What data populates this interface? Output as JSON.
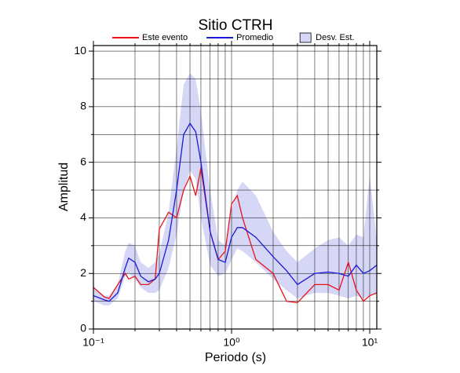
{
  "chart_data": {
    "type": "line",
    "title": "Sitio CTRH",
    "x_label": "Periodo (s)",
    "y_label": "Amplitud",
    "log_x": true,
    "grid": true,
    "xlim": [
      0.1,
      11.25
    ],
    "xticks": [
      {
        "value": 0.1,
        "label": "10⁻¹"
      },
      {
        "value": 1,
        "label": "10⁰"
      },
      {
        "value": 10,
        "label": "10¹"
      }
    ],
    "xminorticks": [
      0.2,
      0.3,
      0.4,
      0.5,
      0.6,
      0.7,
      0.8,
      0.9,
      2,
      3,
      4,
      5,
      6,
      7,
      8,
      9
    ],
    "ylim": [
      0,
      10.2
    ],
    "yticks": [
      0,
      2,
      4,
      6,
      8,
      10
    ],
    "yminorticks": [
      1,
      3,
      5,
      7,
      9
    ],
    "x": [
      0.1,
      0.12,
      0.13,
      0.15,
      0.17,
      0.18,
      0.2,
      0.22,
      0.25,
      0.28,
      0.3,
      0.35,
      0.4,
      0.45,
      0.5,
      0.55,
      0.6,
      0.7,
      0.8,
      0.9,
      1.0,
      1.1,
      1.2,
      1.5,
      2.0,
      2.5,
      3.0,
      4,
      5,
      6,
      7,
      8,
      9,
      10,
      11.25
    ],
    "band": {
      "name": "Desv. Est.",
      "color": "#d6d6f7",
      "lower": [
        1.0,
        0.85,
        0.85,
        1.1,
        1.9,
        2.0,
        1.8,
        1.5,
        1.3,
        1.3,
        1.4,
        2.2,
        3.4,
        5.0,
        5.7,
        5.4,
        4.0,
        2.3,
        1.9,
        2.0,
        2.5,
        2.9,
        2.8,
        2.4,
        1.8,
        1.4,
        1.1,
        1.3,
        1.3,
        1.2,
        1.1,
        1.2,
        1.1,
        1.2,
        1.3
      ],
      "upper": [
        1.5,
        1.2,
        1.2,
        1.6,
        2.8,
        3.1,
        3.0,
        2.4,
        2.2,
        2.4,
        2.7,
        4.2,
        6.5,
        8.8,
        9.2,
        9.0,
        7.8,
        5.0,
        3.2,
        3.0,
        4.3,
        5.0,
        5.3,
        4.8,
        3.5,
        2.8,
        2.4,
        2.9,
        3.2,
        3.3,
        3.0,
        3.4,
        3.3,
        5.5,
        3.2
      ]
    },
    "series": [
      {
        "name": "Este evento",
        "color": "#e8141c",
        "values": [
          1.5,
          1.15,
          1.1,
          1.6,
          2.0,
          1.8,
          1.9,
          1.6,
          1.6,
          1.8,
          3.6,
          4.2,
          4.0,
          5.0,
          5.5,
          4.8,
          5.8,
          3.5,
          2.5,
          2.8,
          4.5,
          4.8,
          4.0,
          2.5,
          2.0,
          1.0,
          0.95,
          1.6,
          1.6,
          1.4,
          2.4,
          1.4,
          1.0,
          1.2,
          1.3
        ]
      },
      {
        "name": "Promedio",
        "color": "#1a1ad6",
        "values": [
          1.2,
          1.05,
          1.0,
          1.3,
          2.2,
          2.55,
          2.4,
          1.9,
          1.7,
          1.8,
          2.0,
          3.2,
          5.0,
          7.0,
          7.4,
          7.1,
          6.0,
          3.5,
          2.5,
          2.4,
          3.3,
          3.65,
          3.65,
          3.3,
          2.6,
          2.1,
          1.6,
          2.0,
          2.05,
          2.0,
          1.9,
          2.3,
          2.0,
          2.1,
          2.3
        ]
      }
    ]
  }
}
